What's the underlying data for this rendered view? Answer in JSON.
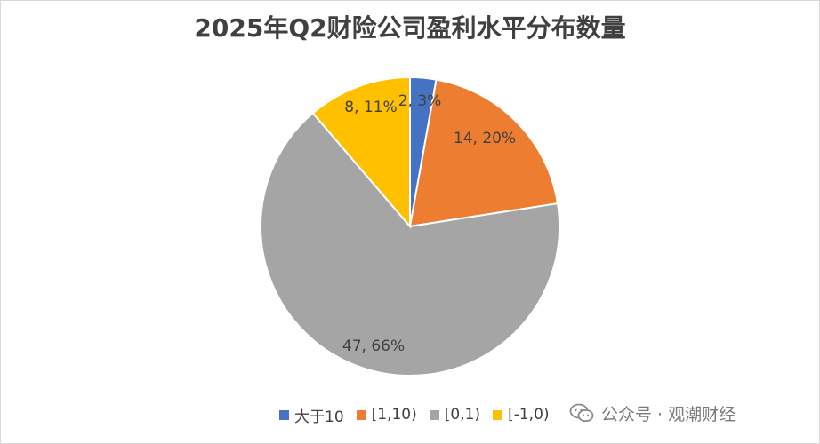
{
  "chart_data": {
    "type": "pie",
    "title": "2025年Q2财险公司盈利水平分布数量",
    "slices": [
      {
        "name": "大于10",
        "value": 2,
        "percent": "3%",
        "label": "2, 3%",
        "color": "#4472C4"
      },
      {
        "name": "[1,10)",
        "value": 14,
        "percent": "20%",
        "label": "14, 20%",
        "color": "#ED7D31"
      },
      {
        "name": "[0,1)",
        "value": 47,
        "percent": "66%",
        "label": "47, 66%",
        "color": "#A5A5A5"
      },
      {
        "name": "[-1,0)",
        "value": 8,
        "percent": "11%",
        "label": "8, 11%",
        "color": "#FFC000"
      }
    ],
    "legend_position": "bottom"
  },
  "watermark": {
    "icon": "wechat-icon",
    "text": "公众号 · 观潮财经"
  }
}
